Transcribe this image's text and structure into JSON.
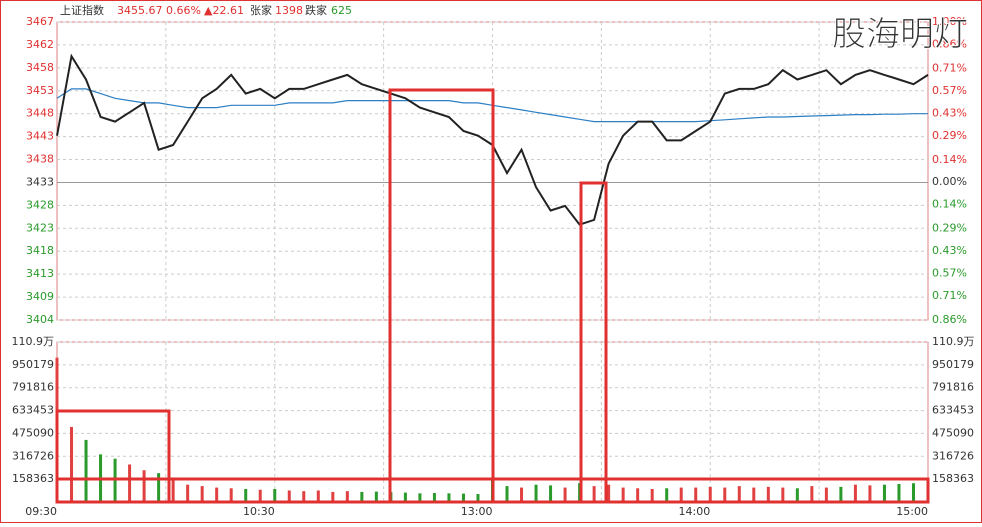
{
  "chart_data": {
    "type": "line",
    "header": {
      "name": "上证指数",
      "price": "3455.67",
      "pct": "0.66%",
      "change": "▲22.61",
      "up_label": "张家",
      "up_count": "1398",
      "down_label": "跌家",
      "down_count": "625"
    },
    "watermark": "股海明灯",
    "x": [
      0,
      4,
      8,
      12,
      16,
      20,
      24,
      28,
      32,
      36,
      40,
      44,
      48,
      52,
      56,
      60,
      64,
      68,
      72,
      76,
      80,
      84,
      88,
      92,
      96,
      100,
      104,
      108,
      112,
      116,
      120,
      124,
      128,
      132,
      136,
      140,
      144,
      148,
      152,
      156,
      160,
      164,
      168,
      172,
      176,
      180,
      184,
      188,
      192,
      196,
      200,
      204,
      208,
      212,
      216,
      220,
      224,
      228,
      232,
      236,
      240
    ],
    "xlim": [
      0,
      240
    ],
    "xticks": [
      {
        "value": 0,
        "label": "09:30"
      },
      {
        "value": 30,
        "label": null
      },
      {
        "value": 60,
        "label": "10:30"
      },
      {
        "value": 90,
        "label": null
      },
      {
        "value": 120,
        "label": "13:00"
      },
      {
        "value": 150,
        "label": null
      },
      {
        "value": 180,
        "label": "14:00"
      },
      {
        "value": 210,
        "label": null
      },
      {
        "value": 240,
        "label": "15:00"
      }
    ],
    "series": [
      {
        "name": "price",
        "color": "#222222",
        "values": [
          3443,
          3460,
          3455,
          3447,
          3446,
          3448,
          3450,
          3440,
          3441,
          3446,
          3451,
          3453,
          3456,
          3452,
          3453,
          3451,
          3453,
          3453,
          3454,
          3455,
          3456,
          3454,
          3453,
          3452,
          3451,
          3449,
          3448,
          3447,
          3444,
          3443,
          3441,
          3435,
          3440,
          3432,
          3427,
          3428,
          3424,
          3425,
          3437,
          3443,
          3446,
          3446,
          3442,
          3442,
          3444,
          3446,
          3452,
          3453,
          3453,
          3454,
          3457,
          3455,
          3456,
          3457,
          3454,
          3456,
          3457,
          3456,
          3455,
          3454,
          3456
        ]
      },
      {
        "name": "average",
        "color": "#2b7fc4",
        "values": [
          3451,
          3453,
          3453,
          3452,
          3451,
          3450.5,
          3450,
          3450,
          3449.5,
          3449,
          3449,
          3449,
          3449.5,
          3449.5,
          3449.5,
          3449.5,
          3450,
          3450,
          3450,
          3450,
          3450.5,
          3450.5,
          3450.5,
          3450.5,
          3450.5,
          3450.5,
          3450.5,
          3450.5,
          3450,
          3450,
          3449.5,
          3449,
          3448.5,
          3448,
          3447.5,
          3447,
          3446.5,
          3446,
          3446,
          3446,
          3446,
          3446,
          3446,
          3446,
          3446,
          3446.2,
          3446.4,
          3446.6,
          3446.8,
          3447,
          3447,
          3447.1,
          3447.2,
          3447.3,
          3447.4,
          3447.5,
          3447.5,
          3447.6,
          3447.6,
          3447.7,
          3447.7
        ]
      }
    ],
    "ylim": [
      3403.6,
      3467.3
    ],
    "yticks": [
      {
        "value": 3467.3,
        "label": "3467"
      },
      {
        "value": 3462.4,
        "label": "3462"
      },
      {
        "value": 3457.5,
        "label": "3458"
      },
      {
        "value": 3452.6,
        "label": "3453"
      },
      {
        "value": 3447.7,
        "label": "3448"
      },
      {
        "value": 3442.8,
        "label": "3443"
      },
      {
        "value": 3437.9,
        "label": "3438"
      },
      {
        "value": 3433,
        "label": "3433"
      },
      {
        "value": 3428.1,
        "label": "3428"
      },
      {
        "value": 3423.2,
        "label": "3423"
      },
      {
        "value": 3418.3,
        "label": "3418"
      },
      {
        "value": 3413.4,
        "label": "3413"
      },
      {
        "value": 3408.5,
        "label": "3409"
      },
      {
        "value": 3403.6,
        "label": "3404"
      }
    ],
    "y2lim": [
      -0.86,
      1.0
    ],
    "y2ticks": [
      {
        "value": 1.0,
        "label": "1.00%"
      },
      {
        "value": 0.86,
        "label": "0.86%"
      },
      {
        "value": 0.71,
        "label": "0.71%"
      },
      {
        "value": 0.57,
        "label": "0.57%"
      },
      {
        "value": 0.43,
        "label": "0.43%"
      },
      {
        "value": 0.29,
        "label": "0.29%"
      },
      {
        "value": 0.14,
        "label": "0.14%"
      },
      {
        "value": 0,
        "label": "0.00%"
      },
      {
        "value": -0.14,
        "label": "0.14%"
      },
      {
        "value": -0.29,
        "label": "0.29%"
      },
      {
        "value": -0.43,
        "label": "0.43%"
      },
      {
        "value": -0.57,
        "label": "0.57%"
      },
      {
        "value": -0.71,
        "label": "0.71%"
      },
      {
        "value": -0.86,
        "label": "0.86%"
      }
    ],
    "volume": {
      "up_color": "#e04040",
      "down_color": "#2a9a2a",
      "values": [
        1000000,
        520000,
        430000,
        330000,
        300000,
        260000,
        220000,
        200000,
        170000,
        120000,
        110000,
        100000,
        95000,
        90000,
        85000,
        90000,
        80000,
        75000,
        80000,
        70000,
        75000,
        70000,
        72000,
        68000,
        65000,
        60000,
        62000,
        60000,
        58000,
        55000,
        160000,
        110000,
        100000,
        120000,
        115000,
        100000,
        130000,
        110000,
        120000,
        100000,
        95000,
        90000,
        95000,
        100000,
        100000,
        105000,
        100000,
        110000,
        100000,
        105000,
        100000,
        95000,
        110000,
        100000,
        105000,
        120000,
        115000,
        120000,
        125000,
        130000,
        150000
      ],
      "ylim": [
        0,
        1108541
      ],
      "yticks": [
        {
          "value": 1108541,
          "label": "110.9万"
        },
        950179,
        791816,
        633453,
        475090,
        316726,
        158363
      ]
    },
    "grid": true
  }
}
